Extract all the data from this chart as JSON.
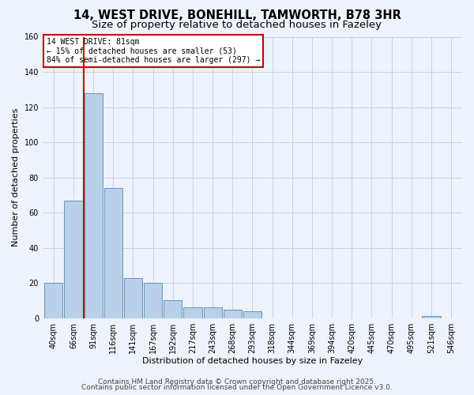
{
  "title": "14, WEST DRIVE, BONEHILL, TAMWORTH, B78 3HR",
  "subtitle": "Size of property relative to detached houses in Fazeley",
  "xlabel": "Distribution of detached houses by size in Fazeley",
  "ylabel": "Number of detached properties",
  "bin_labels": [
    "40sqm",
    "66sqm",
    "91sqm",
    "116sqm",
    "141sqm",
    "167sqm",
    "192sqm",
    "217sqm",
    "243sqm",
    "268sqm",
    "293sqm",
    "318sqm",
    "344sqm",
    "369sqm",
    "394sqm",
    "420sqm",
    "445sqm",
    "470sqm",
    "495sqm",
    "521sqm",
    "546sqm"
  ],
  "bar_values": [
    20,
    67,
    128,
    74,
    23,
    20,
    10,
    6,
    6,
    5,
    4,
    0,
    0,
    0,
    0,
    0,
    0,
    0,
    0,
    1,
    0
  ],
  "bar_color": "#b8d0e8",
  "bar_edge_color": "#5588bb",
  "ylim": [
    0,
    160
  ],
  "yticks": [
    0,
    20,
    40,
    60,
    80,
    100,
    120,
    140,
    160
  ],
  "annotation_title": "14 WEST DRIVE: 81sqm",
  "annotation_line1": "← 15% of detached houses are smaller (53)",
  "annotation_line2": "84% of semi-detached houses are larger (297) →",
  "annotation_box_color": "#ffffff",
  "annotation_box_edge": "#cc0000",
  "vline_color": "#cc0000",
  "background_color": "#eef2fa",
  "footer1": "Contains HM Land Registry data © Crown copyright and database right 2025.",
  "footer2": "Contains public sector information licensed under the Open Government Licence v3.0.",
  "title_fontsize": 10.5,
  "subtitle_fontsize": 9.5,
  "footer_fontsize": 6.5
}
